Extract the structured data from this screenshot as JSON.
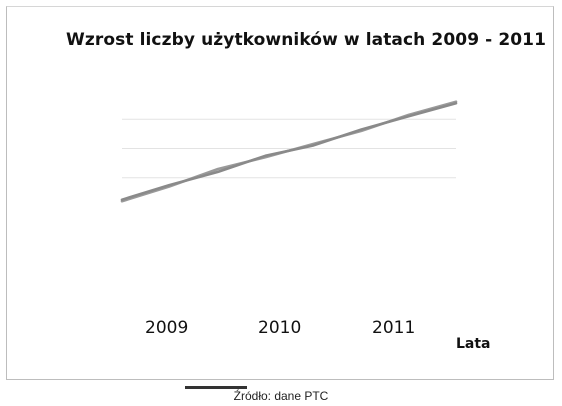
{
  "chart_data": {
    "type": "line",
    "title": "Wzrost liczby użytkowników w latach 2009 - 2011",
    "xlabel": "Lata",
    "ylabel": "",
    "categories": [
      "2009",
      "2010",
      "2011"
    ],
    "x": [
      2009,
      2009.33,
      2009.67,
      2010,
      2010.33,
      2010.67,
      2011,
      2011.33
    ],
    "ylim": [
      0,
      4
    ],
    "grid": true,
    "legend": "none",
    "series": [
      {
        "values": [
          0.2,
          0.7,
          1.3,
          1.7,
          2.15,
          2.6,
          3.15,
          3.6
        ],
        "color": "#9a9a9a"
      },
      {
        "values": [
          0.25,
          0.75,
          1.2,
          1.75,
          2.1,
          2.65,
          3.1,
          3.55
        ],
        "color": "#8a8a8a"
      }
    ]
  },
  "source": "Źródło: dane PTC"
}
